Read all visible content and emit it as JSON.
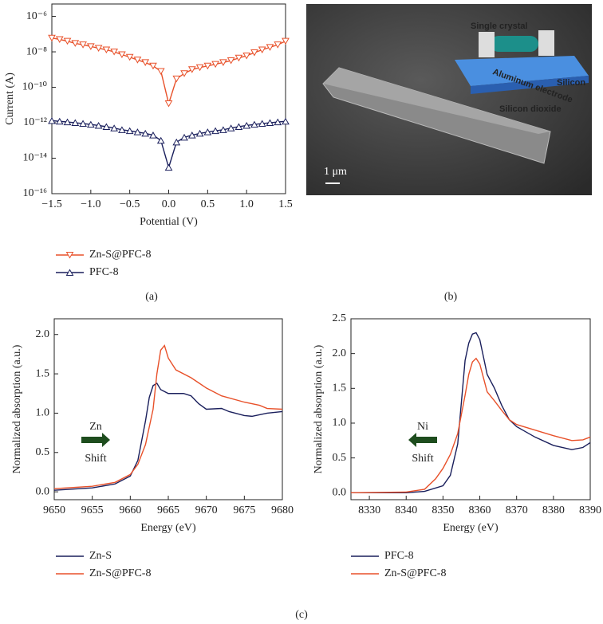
{
  "chart_data": [
    {
      "type": "line",
      "panel_label": "(a)",
      "x_label": "Potential (V)",
      "y_label": "Current (A)",
      "log_y": true,
      "x": [
        -1.5,
        -1.4,
        -1.3,
        -1.2,
        -1.1,
        -1.0,
        -0.9,
        -0.8,
        -0.7,
        -0.6,
        -0.5,
        -0.4,
        -0.3,
        -0.2,
        -0.1,
        0,
        0.1,
        0.2,
        0.3,
        0.4,
        0.5,
        0.6,
        0.7,
        0.8,
        0.9,
        1.0,
        1.1,
        1.2,
        1.3,
        1.4,
        1.5
      ],
      "xlim": [
        -1.5,
        1.5
      ],
      "xticks": [
        {
          "value": -1.5,
          "label": "−1.5"
        },
        {
          "value": -1,
          "label": "−1.0"
        },
        {
          "value": -0.5,
          "label": "−0.5"
        },
        {
          "value": 0,
          "label": "0.0"
        },
        {
          "value": 0.5,
          "label": "0.5"
        },
        {
          "value": 1,
          "label": "1.0"
        },
        {
          "value": 1.5,
          "label": "1.5"
        }
      ],
      "ylim": [
        1e-16,
        5e-06
      ],
      "yticks": [
        {
          "value": 1e-16,
          "label": "10⁻¹⁶"
        },
        {
          "value": 1e-14,
          "label": "10⁻¹⁴"
        },
        {
          "value": 1e-12,
          "label": "10⁻¹²"
        },
        {
          "value": 1e-10,
          "label": "10⁻¹⁰"
        },
        {
          "value": 1e-08,
          "label": "10⁻⁸"
        },
        {
          "value": 1e-06,
          "label": "10⁻⁶"
        }
      ],
      "series": [
        {
          "name": "Zn-S@PFC-8",
          "color": "#e8512a",
          "marker": "triangle-down",
          "values": [
            6e-08,
            5e-08,
            4e-08,
            3e-08,
            2.5e-08,
            2e-08,
            1.6e-08,
            1.3e-08,
            1e-08,
            7e-09,
            5e-09,
            3.5e-09,
            2.5e-09,
            1.6e-09,
            8e-10,
            1.2e-11,
            3e-10,
            6e-10,
            1e-09,
            1.3e-09,
            1.6e-09,
            2e-09,
            2.5e-09,
            3.2e-09,
            4.5e-09,
            6e-09,
            9e-09,
            1.3e-08,
            1.8e-08,
            2.5e-08,
            4e-08
          ]
        },
        {
          "name": "PFC-8",
          "color": "#1a1f5c",
          "marker": "triangle-up",
          "values": [
            1.3e-12,
            1.2e-12,
            1.1e-12,
            1e-12,
            9e-13,
            8e-13,
            7e-13,
            6e-13,
            5e-13,
            4e-13,
            3.5e-13,
            3e-13,
            2.5e-13,
            2e-13,
            1e-13,
            3e-15,
            8e-14,
            1.5e-13,
            2e-13,
            2.5e-13,
            3e-13,
            3.5e-13,
            4e-13,
            5e-13,
            6e-13,
            7e-13,
            8e-13,
            9e-13,
            1e-12,
            1.1e-12,
            1.2e-12
          ]
        }
      ]
    },
    {
      "type": "line",
      "x_label": "Energy (eV)",
      "y_label": "Normalized absorption (a.u.)",
      "xlim": [
        9650,
        9680
      ],
      "xticks": [
        9650,
        9655,
        9660,
        9665,
        9670,
        9675,
        9680
      ],
      "ylim": [
        -0.1,
        2.2
      ],
      "yticks": [
        {
          "value": 0,
          "label": "0.0"
        },
        {
          "value": 0.5,
          "label": "0.5"
        },
        {
          "value": 1,
          "label": "1.0"
        },
        {
          "value": 1.5,
          "label": "1.5"
        },
        {
          "value": 2,
          "label": "2.0"
        }
      ],
      "annotations": [
        {
          "text": "Zn",
          "color": "#e8312a"
        },
        {
          "text": "Shift",
          "color": "#1e4d1e"
        }
      ],
      "arrow": "right",
      "series": [
        {
          "name": "Zn-S",
          "color": "#1a1f5c",
          "x": [
            9650,
            9655,
            9658,
            9660,
            9661,
            9662,
            9662.5,
            9663,
            9663.5,
            9664,
            9665,
            9667,
            9668,
            9669,
            9670,
            9672,
            9673,
            9675,
            9676,
            9678,
            9680
          ],
          "values": [
            0.02,
            0.05,
            0.1,
            0.2,
            0.4,
            0.9,
            1.2,
            1.35,
            1.38,
            1.3,
            1.25,
            1.25,
            1.22,
            1.12,
            1.05,
            1.06,
            1.02,
            0.97,
            0.96,
            1.0,
            1.02
          ]
        },
        {
          "name": "Zn-S@PFC-8",
          "color": "#e8512a",
          "x": [
            9650,
            9655,
            9658,
            9660,
            9661,
            9662,
            9663,
            9663.5,
            9664,
            9664.5,
            9665,
            9666,
            9668,
            9670,
            9672,
            9675,
            9677,
            9678,
            9680
          ],
          "values": [
            0.04,
            0.07,
            0.12,
            0.22,
            0.35,
            0.6,
            1.05,
            1.5,
            1.8,
            1.86,
            1.7,
            1.55,
            1.45,
            1.32,
            1.22,
            1.14,
            1.1,
            1.06,
            1.05
          ]
        }
      ]
    },
    {
      "type": "line",
      "x_label": "Energy (eV)",
      "y_label": "Normalized absorption (a.u.)",
      "xlim": [
        8325,
        8390
      ],
      "xticks": [
        8330,
        8340,
        8350,
        8360,
        8370,
        8380,
        8390
      ],
      "ylim": [
        -0.1,
        2.5
      ],
      "yticks": [
        {
          "value": 0,
          "label": "0.0"
        },
        {
          "value": 0.5,
          "label": "0.5"
        },
        {
          "value": 1,
          "label": "1.0"
        },
        {
          "value": 1.5,
          "label": "1.5"
        },
        {
          "value": 2,
          "label": "2.0"
        },
        {
          "value": 2.5,
          "label": "2.5"
        }
      ],
      "annotations": [
        {
          "text": "Ni",
          "color": "#e8312a"
        },
        {
          "text": "Shift",
          "color": "#1e4d1e"
        }
      ],
      "arrow": "left",
      "series": [
        {
          "name": "PFC-8",
          "color": "#1a1f5c",
          "x": [
            8325,
            8340,
            8345,
            8350,
            8352,
            8354,
            8355,
            8356,
            8357,
            8358,
            8359,
            8360,
            8361,
            8362,
            8364,
            8366,
            8368,
            8370,
            8375,
            8380,
            8385,
            8388,
            8390
          ],
          "values": [
            0,
            0,
            0.02,
            0.1,
            0.25,
            0.7,
            1.3,
            1.9,
            2.15,
            2.28,
            2.3,
            2.2,
            1.95,
            1.7,
            1.5,
            1.25,
            1.05,
            0.95,
            0.8,
            0.68,
            0.62,
            0.65,
            0.72
          ]
        },
        {
          "name": "Zn-S@PFC-8",
          "color": "#e8512a",
          "x": [
            8325,
            8340,
            8345,
            8348,
            8350,
            8352,
            8354,
            8356,
            8357,
            8358,
            8359,
            8360,
            8361,
            8362,
            8364,
            8366,
            8368,
            8370,
            8375,
            8380,
            8385,
            8388,
            8390
          ],
          "values": [
            0,
            0.01,
            0.05,
            0.2,
            0.35,
            0.55,
            0.85,
            1.4,
            1.7,
            1.88,
            1.93,
            1.85,
            1.65,
            1.45,
            1.32,
            1.18,
            1.05,
            0.98,
            0.9,
            0.82,
            0.75,
            0.76,
            0.8
          ]
        }
      ]
    }
  ],
  "image_panel": {
    "panel_label": "(b)",
    "scale_bar": "1 μm",
    "labels": [
      "Single crystal",
      "Aluminum electrode",
      "Silicon",
      "Silicon dioxide"
    ]
  },
  "figure_label": "(c)"
}
